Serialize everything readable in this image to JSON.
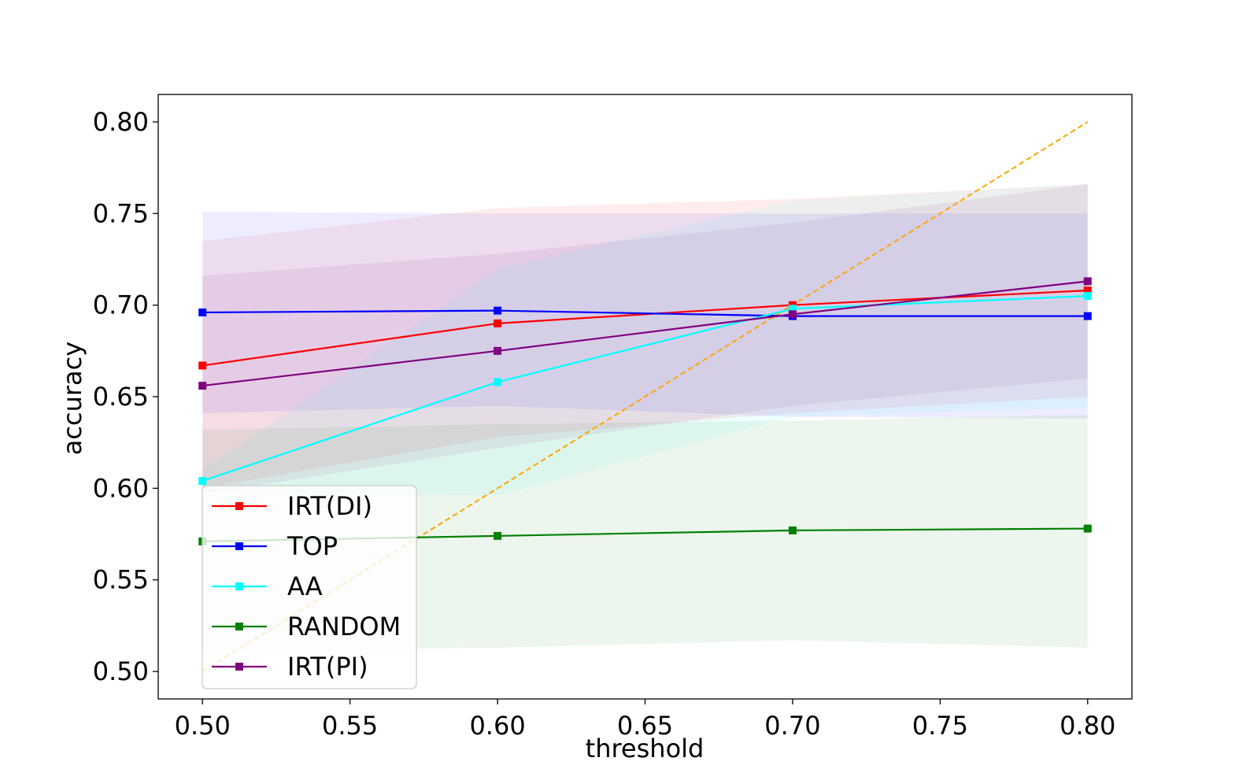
{
  "chart_data": {
    "type": "line",
    "title": "",
    "xlabel": "threshold",
    "ylabel": "accuracy",
    "xlim": [
      0.485,
      0.815
    ],
    "ylim": [
      0.485,
      0.815
    ],
    "xticks": [
      "0.50",
      "0.55",
      "0.60",
      "0.65",
      "0.70",
      "0.75",
      "0.80"
    ],
    "yticks": [
      "0.50",
      "0.55",
      "0.60",
      "0.65",
      "0.70",
      "0.75",
      "0.80"
    ],
    "x": [
      0.5,
      0.6,
      0.7,
      0.8
    ],
    "legend_position": "lower-left",
    "grid": false,
    "series": [
      {
        "name": "IRT(DI)",
        "color": "#ff0000",
        "marker": "square",
        "values": [
          0.667,
          0.69,
          0.7,
          0.708
        ],
        "band_upper": [
          0.735,
          0.753,
          0.758,
          0.766
        ],
        "band_lower": [
          0.6,
          0.628,
          0.641,
          0.65
        ]
      },
      {
        "name": "TOP",
        "color": "#0000ff",
        "marker": "square",
        "values": [
          0.696,
          0.697,
          0.694,
          0.694
        ],
        "band_upper": [
          0.751,
          0.75,
          0.75,
          0.75
        ],
        "band_lower": [
          0.641,
          0.645,
          0.639,
          0.638
        ]
      },
      {
        "name": "AA",
        "color": "#00ffff",
        "marker": "square",
        "values": [
          0.604,
          0.658,
          0.698,
          0.705
        ],
        "band_upper": [
          0.61,
          0.72,
          0.757,
          0.766
        ],
        "band_lower": [
          0.598,
          0.596,
          0.639,
          0.644
        ]
      },
      {
        "name": "RANDOM",
        "color": "#008000",
        "marker": "square",
        "values": [
          0.571,
          0.574,
          0.577,
          0.578
        ],
        "band_upper": [
          0.632,
          0.635,
          0.637,
          0.64
        ],
        "band_lower": [
          0.511,
          0.513,
          0.517,
          0.513
        ]
      },
      {
        "name": "IRT(PI)",
        "color": "#800080",
        "marker": "square",
        "values": [
          0.656,
          0.675,
          0.695,
          0.713
        ],
        "band_upper": [
          0.716,
          0.728,
          0.745,
          0.766
        ],
        "band_lower": [
          0.597,
          0.622,
          0.645,
          0.66
        ]
      }
    ],
    "reference_line": {
      "style": "dashed",
      "color": "#ffa500",
      "x": [
        0.5,
        0.8
      ],
      "y": [
        0.5,
        0.8
      ]
    }
  }
}
